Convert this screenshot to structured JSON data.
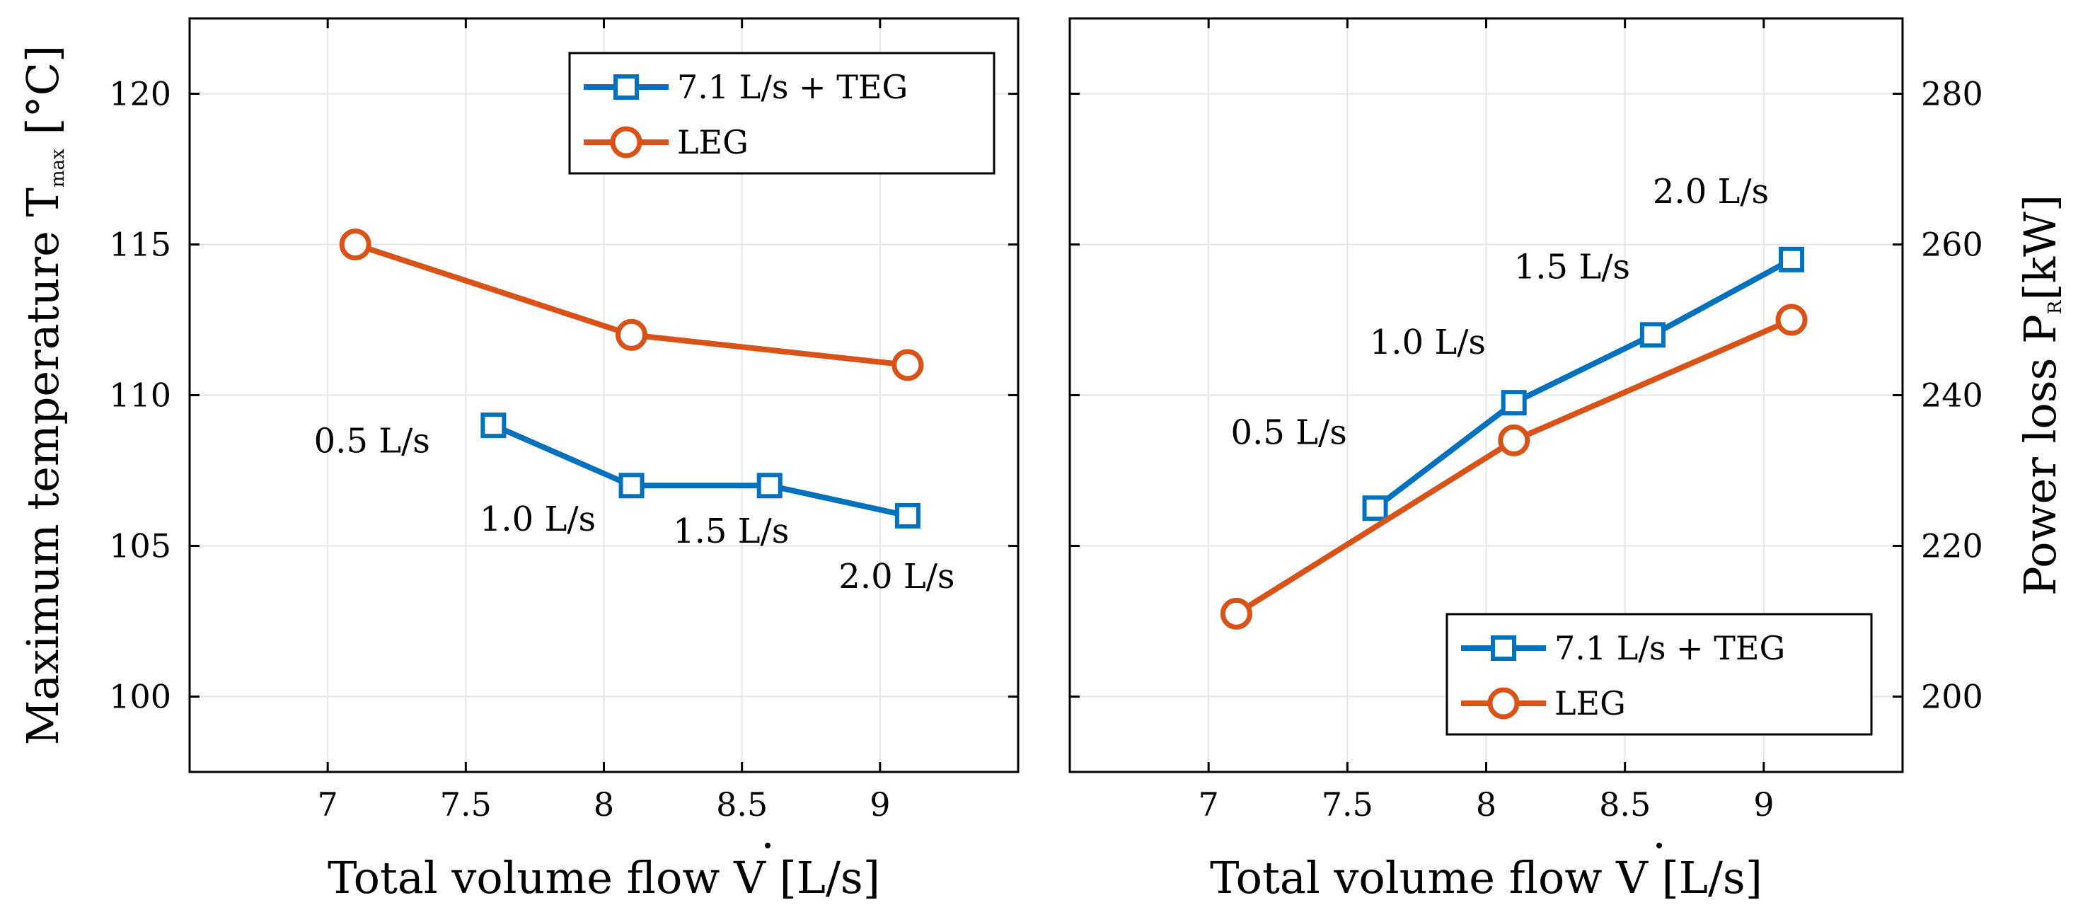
{
  "colors": {
    "blue": "#0072BD",
    "orange": "#D95319",
    "grid": "#E6E6E6"
  },
  "chart_data": [
    {
      "type": "line",
      "xlabel": "Total volume flow V  [L/s]",
      "ylabel": "Maximum temperature T",
      "ylabel_sub": "max",
      "ylabel_unit": " [°C]",
      "xlim": [
        6.5,
        9.5
      ],
      "ylim": [
        97.5,
        122.5
      ],
      "xticks": [
        7,
        7.5,
        8,
        8.5,
        9
      ],
      "xtick_labels": [
        "7",
        "7.5",
        "8",
        "8.5",
        "9"
      ],
      "yticks": [
        100,
        105,
        110,
        115,
        120
      ],
      "ytick_labels": [
        "100",
        "105",
        "110",
        "115",
        "120"
      ],
      "grid": true,
      "series": [
        {
          "name": "7.1 L/s + TEG",
          "color": "#0072BD",
          "marker": "square",
          "x": [
            7.6,
            8.1,
            8.6,
            9.1
          ],
          "y": [
            109,
            107,
            107,
            106
          ]
        },
        {
          "name": "LEG",
          "color": "#D95319",
          "marker": "circle",
          "x": [
            7.1,
            8.1,
            9.1
          ],
          "y": [
            115,
            112,
            111
          ]
        }
      ],
      "legend_entries": [
        "7.1 L/s + TEG",
        "LEG"
      ],
      "legend_location": "top-right",
      "annotations": [
        {
          "text": "0.5 L/s",
          "x": 6.95,
          "y": 108.1
        },
        {
          "text": "1.0 L/s",
          "x": 7.55,
          "y": 105.5
        },
        {
          "text": "1.5 L/s",
          "x": 8.25,
          "y": 105.1
        },
        {
          "text": "2.0 L/s",
          "x": 8.85,
          "y": 103.6
        }
      ]
    },
    {
      "type": "line",
      "xlabel": "Total volume flow V  [L/s]",
      "ylabel": "Power loss P",
      "ylabel_sub": "R",
      "ylabel_unit": "[kW]",
      "xlim": [
        6.5,
        9.5
      ],
      "ylim": [
        190,
        290
      ],
      "xticks": [
        7,
        7.5,
        8,
        8.5,
        9
      ],
      "xtick_labels": [
        "7",
        "7.5",
        "8",
        "8.5",
        "9"
      ],
      "yticks": [
        200,
        220,
        240,
        260,
        280
      ],
      "ytick_labels": [
        "200",
        "220",
        "240",
        "260",
        "280"
      ],
      "yaxis_side": "right",
      "grid": true,
      "series": [
        {
          "name": "7.1 L/s + TEG",
          "color": "#0072BD",
          "marker": "square",
          "x": [
            7.6,
            8.1,
            8.6,
            9.1
          ],
          "y": [
            225,
            239,
            248,
            258
          ]
        },
        {
          "name": "LEG",
          "color": "#D95319",
          "marker": "circle",
          "x": [
            7.1,
            8.1,
            9.1
          ],
          "y": [
            211,
            234,
            250
          ]
        }
      ],
      "legend_entries": [
        "7.1 L/s + TEG",
        "LEG"
      ],
      "legend_location": "bottom-right",
      "annotations": [
        {
          "text": "0.5 L/s",
          "x": 7.08,
          "y": 233.5
        },
        {
          "text": "1.0 L/s",
          "x": 7.58,
          "y": 245.5
        },
        {
          "text": "1.5 L/s",
          "x": 8.1,
          "y": 255.5
        },
        {
          "text": "2.0 L/s",
          "x": 8.6,
          "y": 265.5
        }
      ]
    }
  ]
}
